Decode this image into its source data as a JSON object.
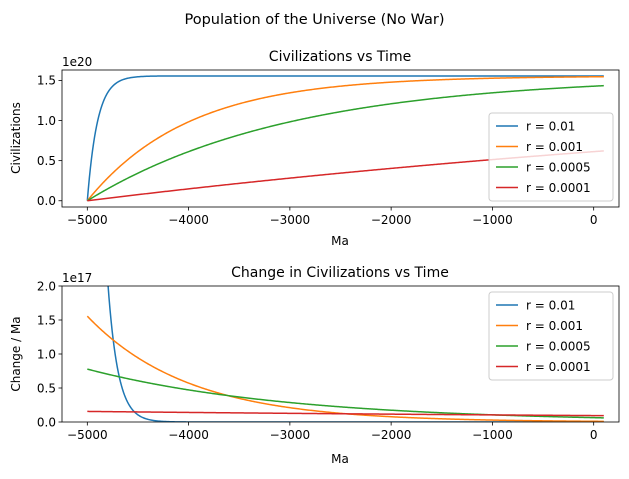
{
  "figure": {
    "suptitle": "Population of the Universe (No War)"
  },
  "chart_data": [
    {
      "type": "line",
      "title": "Civilizations vs Time",
      "xlabel": "Ma",
      "ylabel": "Civilizations",
      "offset_text": "1e20",
      "xlim": [
        -5250,
        250
      ],
      "ylim": [
        -0.078,
        1.63
      ],
      "x_ticks": [
        -5000,
        -4000,
        -3000,
        -2000,
        -1000,
        0
      ],
      "x_tick_labels": [
        "−5000",
        "−4000",
        "−3000",
        "−2000",
        "−1000",
        "0"
      ],
      "y_ticks": [
        0.0,
        0.5,
        1.0,
        1.5
      ],
      "y_tick_labels": [
        "0.0",
        "0.5",
        "1.0",
        "1.5"
      ],
      "legend_position": "lower-right",
      "model": {
        "x_start": -5000,
        "x_end": 100,
        "capacity": 1.556,
        "unit_scale": "1e20"
      },
      "series": [
        {
          "name": "r = 0.01",
          "rate": 0.01,
          "color": "#1f77b4"
        },
        {
          "name": "r = 0.001",
          "rate": 0.001,
          "color": "#ff7f0e"
        },
        {
          "name": "r = 0.0005",
          "rate": 0.0005,
          "color": "#2ca02c"
        },
        {
          "name": "r = 0.0001",
          "rate": 0.0001,
          "color": "#d62728"
        }
      ]
    },
    {
      "type": "line",
      "title": "Change in Civilizations vs Time",
      "xlabel": "Ma",
      "ylabel": "Change / Ma",
      "offset_text": "1e17",
      "xlim": [
        -5250,
        250
      ],
      "ylim": [
        0.0,
        2.0
      ],
      "x_ticks": [
        -5000,
        -4000,
        -3000,
        -2000,
        -1000,
        0
      ],
      "x_tick_labels": [
        "−5000",
        "−4000",
        "−3000",
        "−2000",
        "−1000",
        "0"
      ],
      "y_ticks": [
        0.0,
        0.5,
        1.0,
        1.5,
        2.0
      ],
      "y_tick_labels": [
        "0.0",
        "0.5",
        "1.0",
        "1.5",
        "2.0"
      ],
      "legend_position": "upper-right",
      "model": {
        "x_start": -5000,
        "x_end": 100,
        "capacity": 1556,
        "unit_scale": "1e17"
      },
      "series": [
        {
          "name": "r = 0.01",
          "rate": 0.01,
          "color": "#1f77b4"
        },
        {
          "name": "r = 0.001",
          "rate": 0.001,
          "color": "#ff7f0e"
        },
        {
          "name": "r = 0.0005",
          "rate": 0.0005,
          "color": "#2ca02c"
        },
        {
          "name": "r = 0.0001",
          "rate": 0.0001,
          "color": "#d62728"
        }
      ]
    }
  ]
}
